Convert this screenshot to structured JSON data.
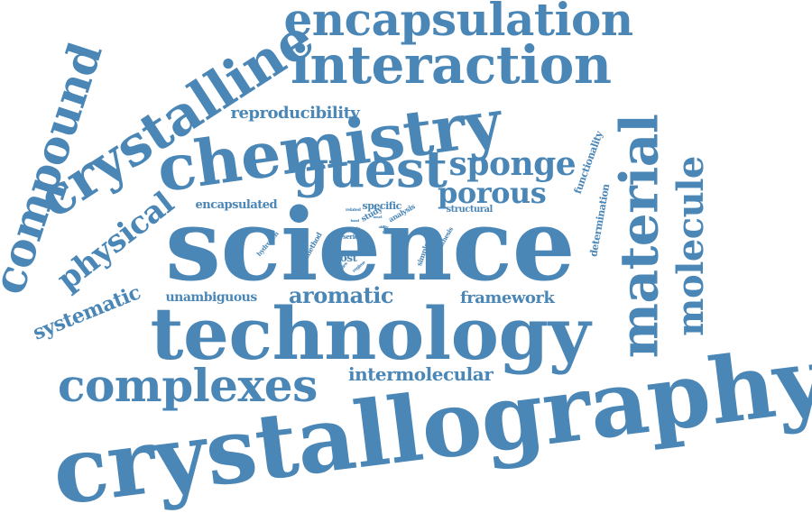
{
  "cloud": {
    "accent_color": "#4a86b6",
    "words": [
      "crystallography",
      "science",
      "technology",
      "chemistry",
      "crystalline",
      "interaction",
      "encapsulation",
      "material",
      "complexes",
      "guest",
      "compound",
      "molecule",
      "sponge",
      "porous",
      "physical",
      "aromatic",
      "systematic",
      "intermolecular",
      "framework",
      "reproducibility",
      "unambiguous",
      "encapsulated",
      "functionality",
      "determination",
      "host",
      "specific",
      "structural",
      "analysis",
      "simple",
      "orientation",
      "synthesis",
      "hydrogen",
      "method",
      "series",
      "related",
      "study",
      "single",
      "studies",
      "regime",
      "bond",
      "ability",
      "novel",
      "link",
      "bulk"
    ]
  }
}
